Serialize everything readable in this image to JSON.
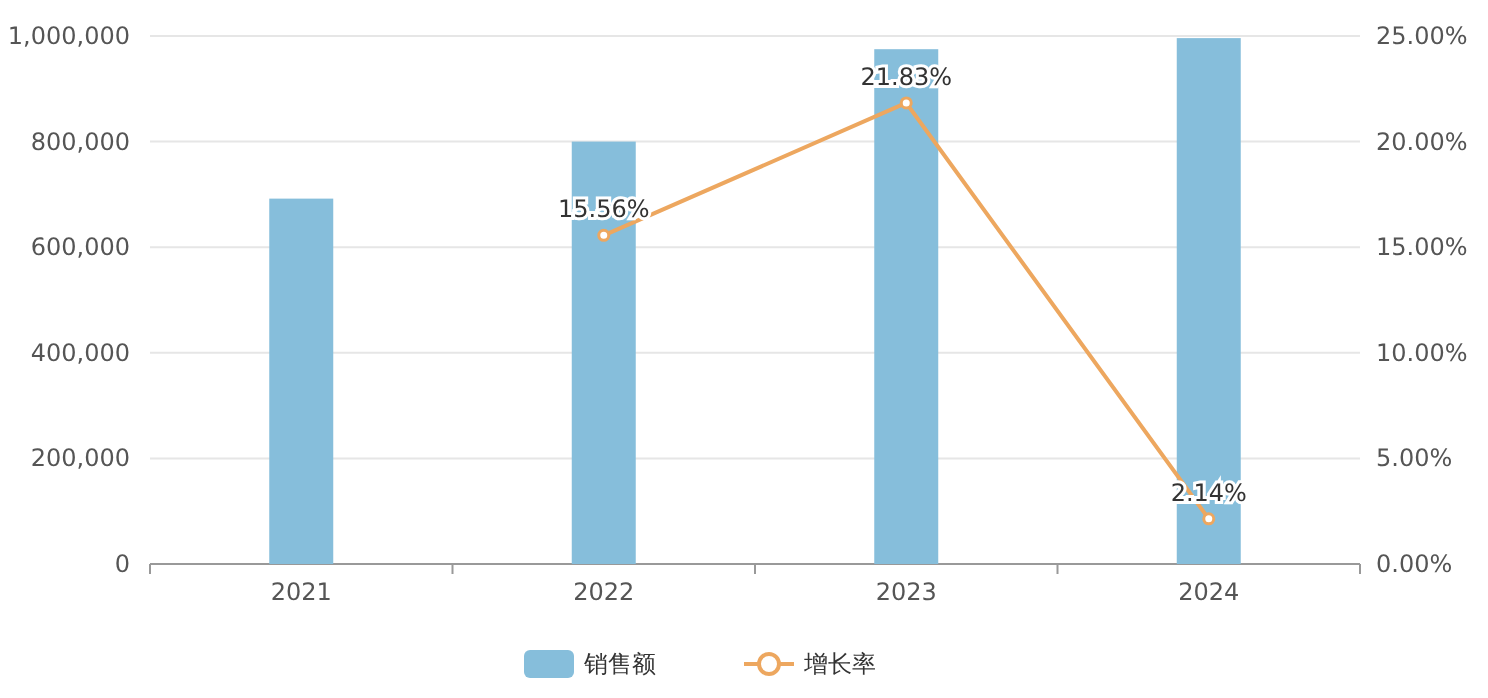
{
  "chart_data": {
    "type": "bar",
    "categories": [
      "2021",
      "2022",
      "2023",
      "2024"
    ],
    "series": [
      {
        "name": "销售额",
        "color": "#86bedb",
        "values": [
          692000,
          800000,
          975000,
          996000
        ]
      },
      {
        "name": "增长率",
        "type": "line",
        "axis": "y2",
        "color": "#eda75f",
        "marker": "circle",
        "values": [
          null,
          15.56,
          21.83,
          2.14
        ],
        "value_labels": [
          null,
          "15.56%",
          "21.83%",
          "2.14%"
        ]
      }
    ],
    "ylim": [
      0,
      1000000
    ],
    "yticks": [
      {
        "value": 0,
        "label": "0"
      },
      {
        "value": 200000,
        "label": "200,000"
      },
      {
        "value": 400000,
        "label": "400,000"
      },
      {
        "value": 600000,
        "label": "600,000"
      },
      {
        "value": 800000,
        "label": "800,000"
      },
      {
        "value": 1000000,
        "label": "1,000,000"
      }
    ],
    "y2lim": [
      0,
      25
    ],
    "y2ticks": [
      {
        "value": 0,
        "label": "0.00%"
      },
      {
        "value": 5,
        "label": "5.00%"
      },
      {
        "value": 10,
        "label": "10.00%"
      },
      {
        "value": 15,
        "label": "15.00%"
      },
      {
        "value": 20,
        "label": "20.00%"
      },
      {
        "value": 25,
        "label": "25.00%"
      }
    ],
    "grid": "y",
    "legend": "bottom"
  }
}
